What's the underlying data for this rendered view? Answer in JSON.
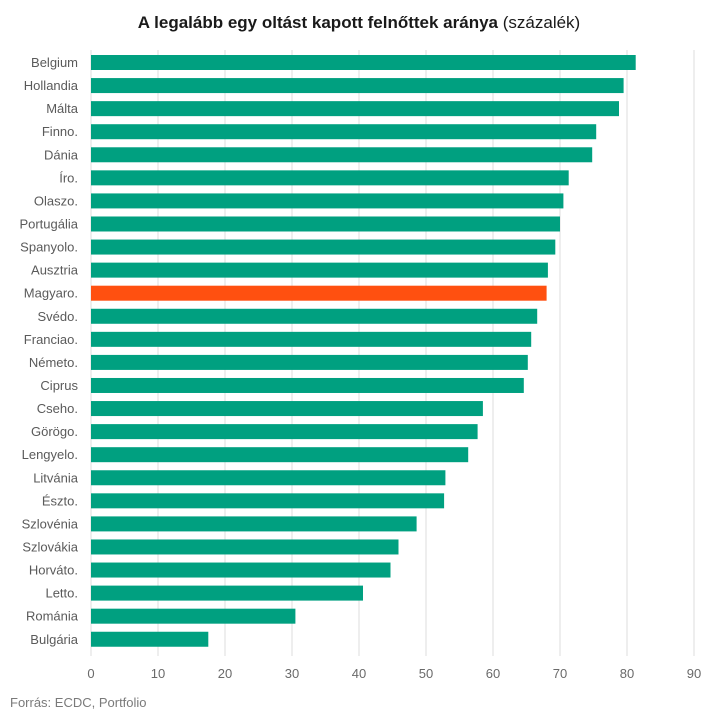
{
  "chart_data": {
    "type": "bar",
    "orientation": "horizontal",
    "title": "A legalább egy oltást kapott felnőttek aránya",
    "title_unit": "(százalék)",
    "source": "Forrás: ECDC, Portfolio",
    "categories": [
      "Belgium",
      "Hollandia",
      "Málta",
      "Finno.",
      "Dánia",
      "Íro.",
      "Olaszo.",
      "Portugália",
      "Spanyolo.",
      "Ausztria",
      "Magyaro.",
      "Svédo.",
      "Franciao.",
      "Németo.",
      "Ciprus",
      "Cseho.",
      "Görögo.",
      "Lengyelo.",
      "Litvánia",
      "Észto.",
      "Szlovénia",
      "Szlovákia",
      "Horváto.",
      "Letto.",
      "Románia",
      "Bulgária"
    ],
    "values": [
      81.3,
      79.5,
      78.8,
      75.4,
      74.8,
      71.3,
      70.5,
      70.0,
      69.3,
      68.2,
      68.0,
      66.6,
      65.7,
      65.2,
      64.6,
      58.5,
      57.7,
      56.3,
      52.9,
      52.7,
      48.6,
      45.9,
      44.7,
      40.6,
      30.5,
      17.5
    ],
    "highlight": "Magyaro.",
    "xlim": [
      0,
      90
    ],
    "xticks": [
      0,
      10,
      20,
      30,
      40,
      50,
      60,
      70,
      80,
      90
    ],
    "grid": true,
    "colors": {
      "bar": "#00A080",
      "highlight": "#FF5010",
      "grid": "#dcdcdc",
      "label": "#5a5a5a"
    }
  }
}
